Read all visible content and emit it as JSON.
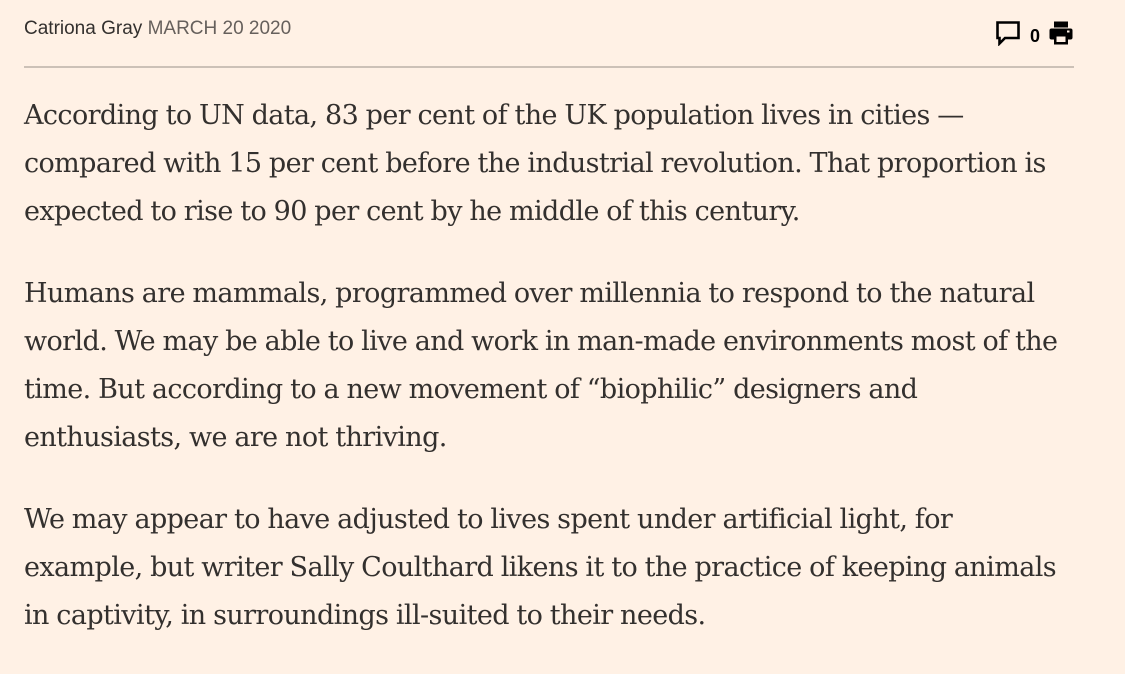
{
  "byline": {
    "author": "Catriona Gray",
    "date": "MARCH 20 2020"
  },
  "tools": {
    "comment_icon": "comment-icon",
    "comment_count": "0",
    "print_icon": "print-icon"
  },
  "article": {
    "paragraphs": [
      "According to UN data, 83 per cent of the UK population lives in cities — compared with 15 per cent before the industrial revolution. That proportion is expected to rise to 90 per cent by he middle of this century.",
      "Humans are mammals, programmed over millennia to respond to the natural world. We may be able to live and work in man-made environments most of the time. But according to a new movement of “biophilic” designers and enthusiasts, we are not thriving.",
      "We may appear to have adjusted to lives spent under artificial light, for example, but writer Sally Coulthard likens it to the practice of keeping animals in captivity, in surroundings ill-suited to their needs."
    ]
  },
  "colors": {
    "background": "#fff1e5",
    "text": "#33302e",
    "rule": "#ccc1b7"
  }
}
